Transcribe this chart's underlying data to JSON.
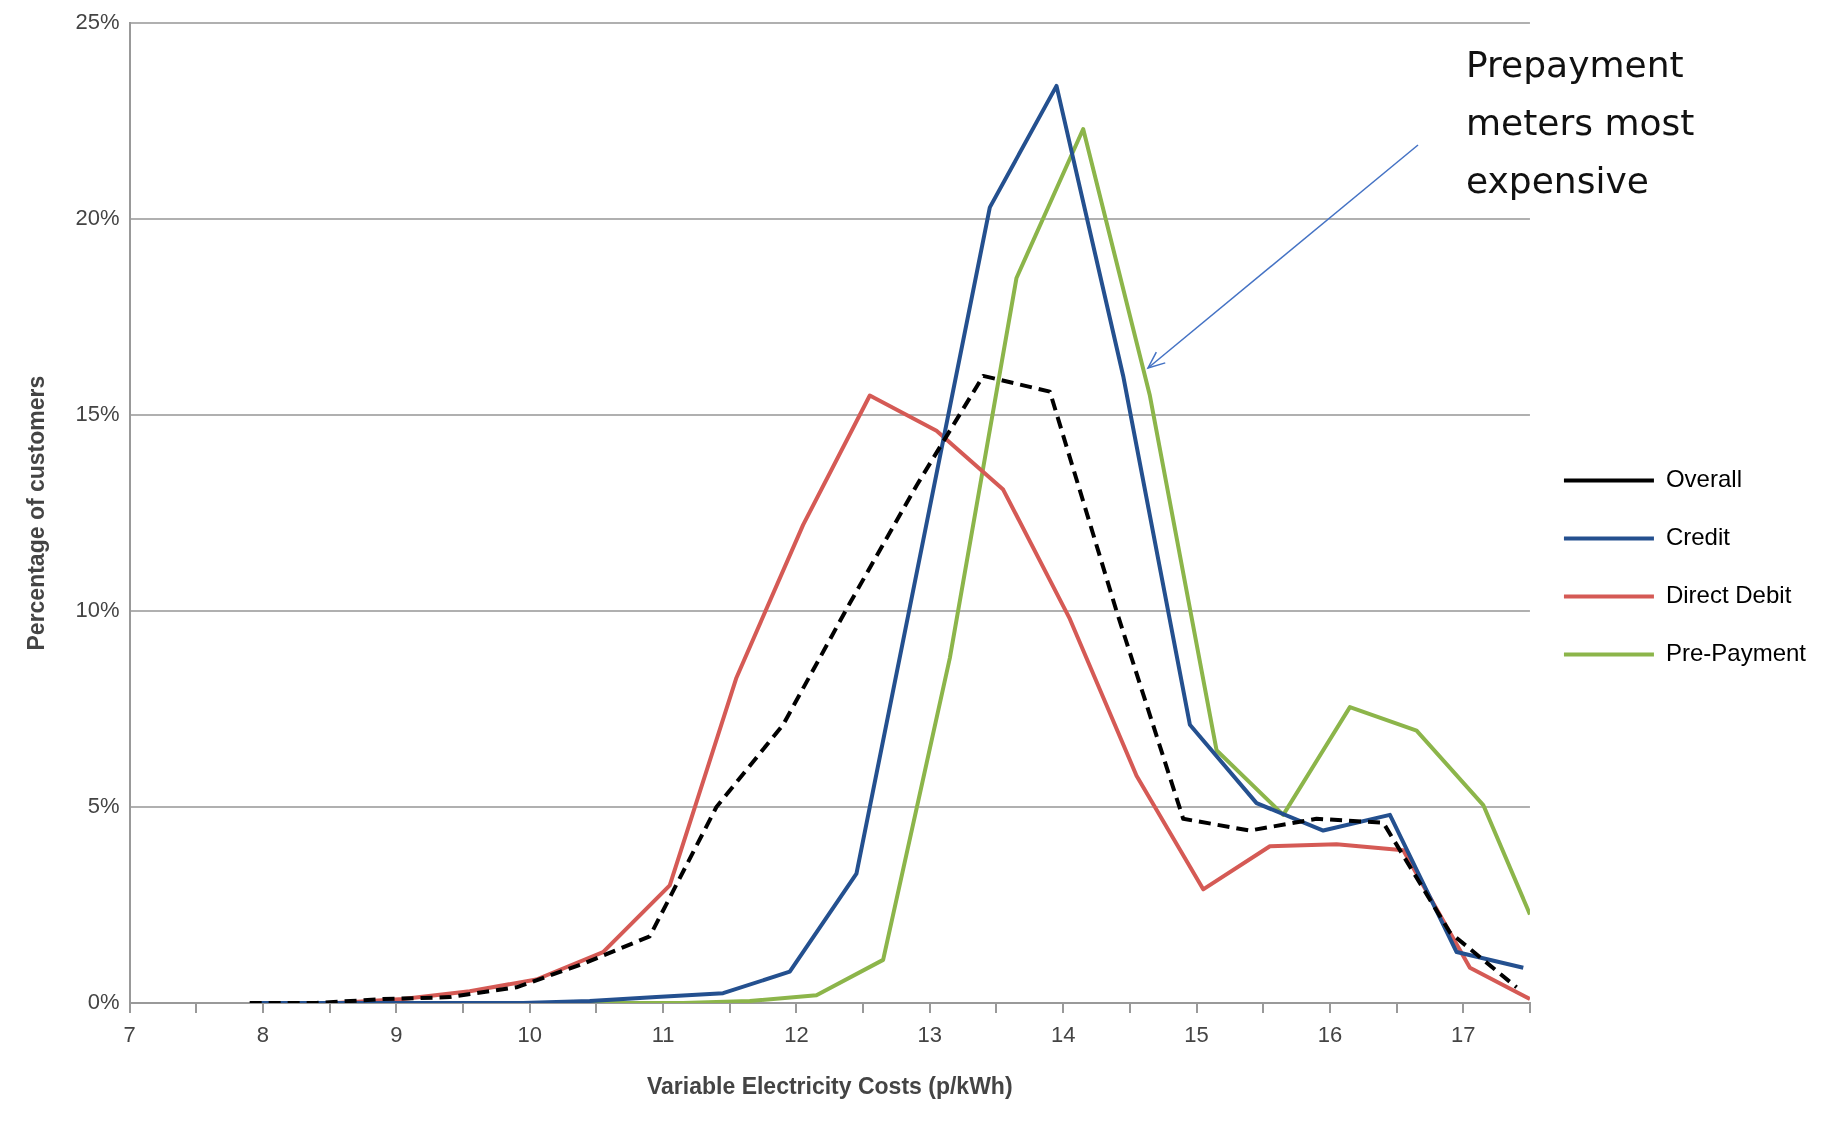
{
  "chart_data": {
    "type": "line",
    "xlabel": "Variable Electricity Costs (p/kWh)",
    "ylabel": "Percentage of customers",
    "xlim": [
      7,
      17.5
    ],
    "xticks": [
      7,
      {
        "value": 7.5,
        "label": null
      },
      8,
      {
        "value": 8.5,
        "label": null
      },
      9,
      {
        "value": 9.5,
        "label": null
      },
      10,
      {
        "value": 10.5,
        "label": null
      },
      11,
      {
        "value": 11.5,
        "label": null
      },
      12,
      {
        "value": 12.5,
        "label": null
      },
      13,
      {
        "value": 13.5,
        "label": null
      },
      14,
      {
        "value": 14.5,
        "label": null
      },
      15,
      {
        "value": 15.5,
        "label": null
      },
      16,
      {
        "value": 16.5,
        "label": null
      },
      17,
      {
        "value": 17.5,
        "label": null
      }
    ],
    "ylim": [
      0,
      25
    ],
    "yticks": [
      {
        "value": 0,
        "label": "0%"
      },
      {
        "value": 5,
        "label": "5%"
      },
      {
        "value": 10,
        "label": "10%"
      },
      {
        "value": 15,
        "label": "15%"
      },
      {
        "value": 20,
        "label": "20%"
      },
      {
        "value": 25,
        "label": "25%"
      }
    ],
    "grid": "y",
    "legend": "right",
    "marker": "none",
    "annotations": [
      "Prepayment meters most expensive"
    ],
    "series": [
      {
        "name": "Overall",
        "color": "#000000",
        "line_style": "dashed",
        "x": [
          7.9,
          8.4,
          8.9,
          9.4,
          9.9,
          10.4,
          10.9,
          11.4,
          11.9,
          12.4,
          12.9,
          13.4,
          13.9,
          14.4,
          14.9,
          15.4,
          15.9,
          16.4,
          16.9,
          17.4
        ],
        "values": [
          0,
          0,
          0.1,
          0.15,
          0.4,
          1.0,
          1.7,
          5.0,
          7.1,
          10.2,
          13.2,
          16.0,
          15.6,
          10.0,
          4.7,
          4.4,
          4.7,
          4.6,
          1.8,
          0.4
        ]
      },
      {
        "name": "Credit",
        "color": "#24508f",
        "line_style": "solid",
        "x": [
          7.95,
          8.45,
          8.95,
          9.45,
          9.95,
          10.45,
          10.95,
          11.45,
          11.95,
          12.45,
          12.95,
          13.45,
          13.95,
          14.45,
          14.95,
          15.45,
          15.95,
          16.45,
          16.95,
          17.45
        ],
        "values": [
          0,
          0,
          0,
          0,
          0,
          0.05,
          0.15,
          0.25,
          0.8,
          3.3,
          11.8,
          20.3,
          23.4,
          16.0,
          7.1,
          5.1,
          4.4,
          4.8,
          1.3,
          0.9
        ]
      },
      {
        "name": "Direct Debit",
        "color": "#d55a55",
        "line_style": "solid",
        "x": [
          8.05,
          8.55,
          9.05,
          9.55,
          10.05,
          10.55,
          11.05,
          11.55,
          12.05,
          12.55,
          13.05,
          13.55,
          14.05,
          14.55,
          15.05,
          15.55,
          16.05,
          16.55,
          17.05,
          17.5
        ],
        "values": [
          0,
          0,
          0.1,
          0.3,
          0.6,
          1.3,
          3.0,
          8.3,
          12.2,
          15.5,
          14.6,
          13.1,
          9.8,
          5.8,
          2.9,
          4.0,
          4.05,
          3.9,
          0.9,
          0.1
        ]
      },
      {
        "name": "Pre-Payment",
        "color": "#8cb54a",
        "line_style": "solid",
        "x": [
          10.15,
          10.65,
          11.15,
          11.65,
          12.15,
          12.65,
          13.15,
          13.65,
          14.15,
          14.65,
          15.15,
          15.65,
          16.15,
          16.65,
          17.15,
          17.5
        ],
        "values": [
          0,
          0,
          0,
          0.05,
          0.2,
          1.1,
          8.8,
          18.5,
          22.3,
          15.5,
          6.45,
          4.8,
          7.55,
          6.95,
          5.05,
          2.26
        ]
      }
    ]
  }
}
